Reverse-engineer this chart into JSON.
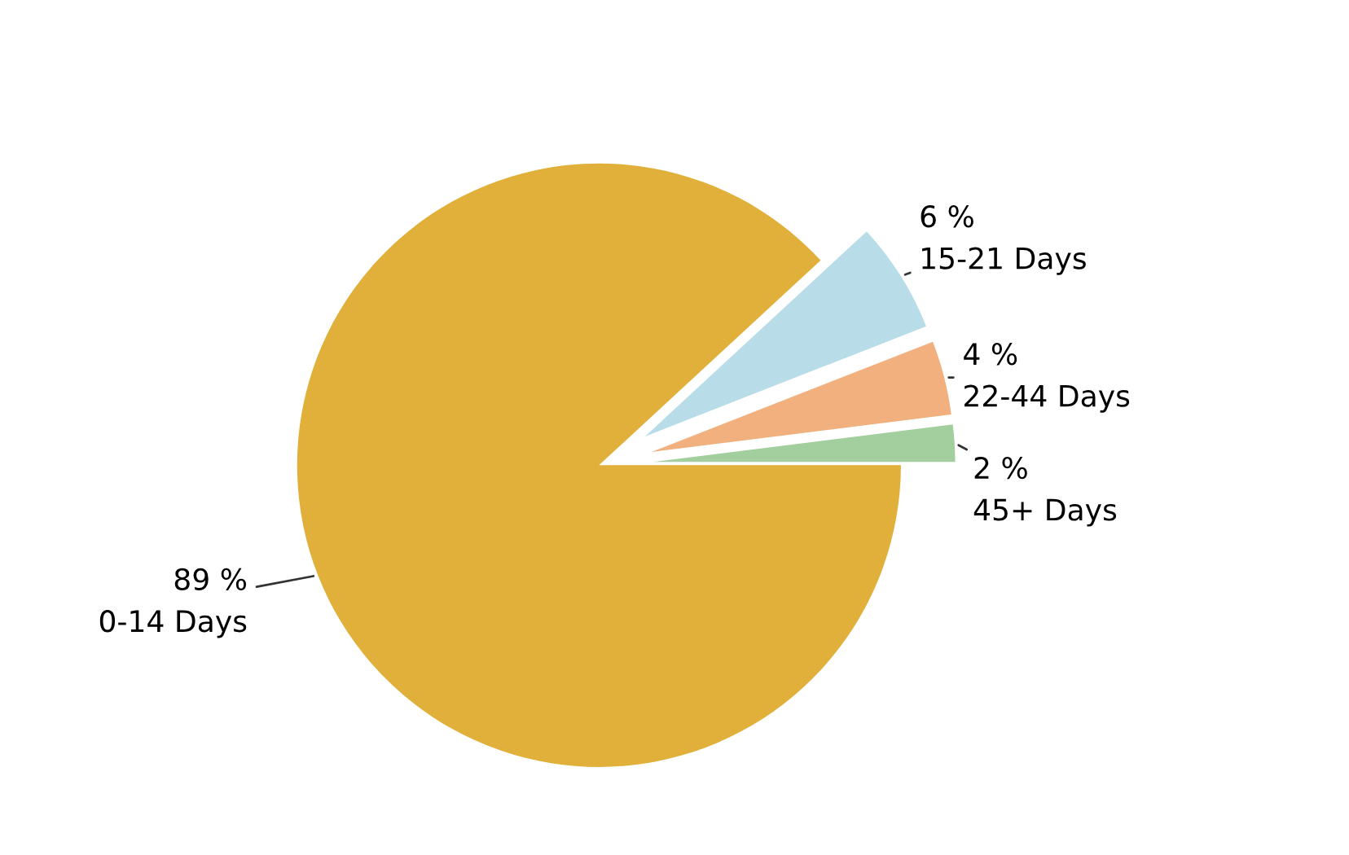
{
  "chart_data": {
    "type": "pie",
    "categories": [
      "45+ Days",
      "22-44 Days",
      "15-21 Days",
      "0-14 Days"
    ],
    "values": [
      2,
      4,
      6,
      89
    ],
    "value_labels": [
      "2 %",
      "4 %",
      "6 %",
      "89 %"
    ],
    "colors": [
      "#a3cf9e",
      "#f2b07f",
      "#b8dde8",
      "#e0b03a"
    ],
    "legend": false
  }
}
